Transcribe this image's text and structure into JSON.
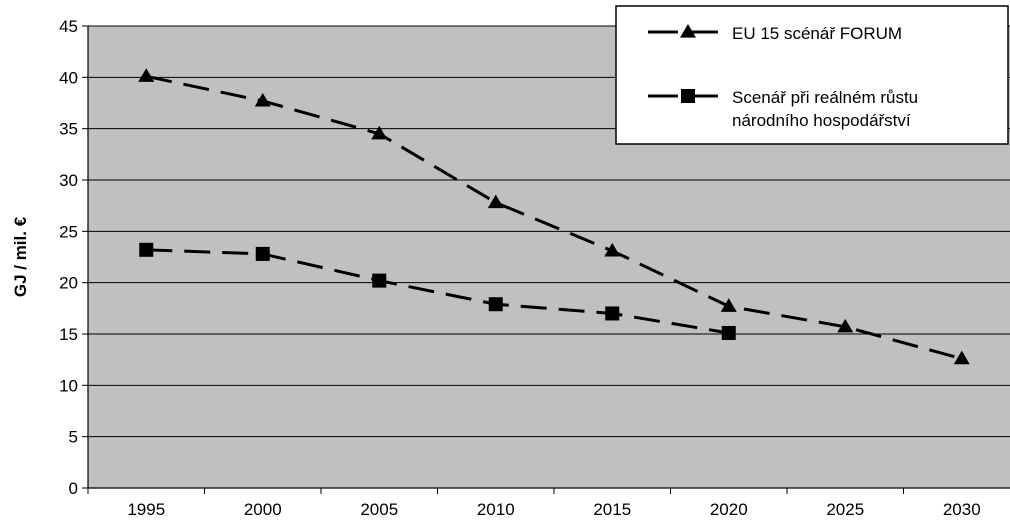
{
  "chart_data": {
    "type": "line",
    "title": "",
    "xlabel": "",
    "ylabel": "GJ / mil. €",
    "categories": [
      "1995",
      "2000",
      "2005",
      "2010",
      "2015",
      "2020",
      "2025",
      "2030"
    ],
    "ylim": [
      0,
      45
    ],
    "yticks": [
      0,
      5,
      10,
      15,
      20,
      25,
      30,
      35,
      40,
      45
    ],
    "grid": true,
    "legend_position": "top-right",
    "colors": {
      "plot_background": "#c0c0c0",
      "line": "#000000",
      "grid": "#000000"
    },
    "series": [
      {
        "name": "EU 15 scénář FORUM",
        "marker": "triangle",
        "values": [
          40.1,
          37.7,
          34.5,
          27.8,
          23.1,
          17.7,
          15.7,
          12.6
        ]
      },
      {
        "name": "Scenář při reálném růstu národního hospodářství",
        "marker": "square",
        "values": [
          23.2,
          22.8,
          20.2,
          17.9,
          17.0,
          15.1,
          null,
          null
        ]
      }
    ],
    "legend": [
      {
        "lines": [
          "EU 15 scénář FORUM"
        ]
      },
      {
        "lines": [
          "Scenář při reálném růstu",
          "národního hospodářství"
        ]
      }
    ]
  }
}
